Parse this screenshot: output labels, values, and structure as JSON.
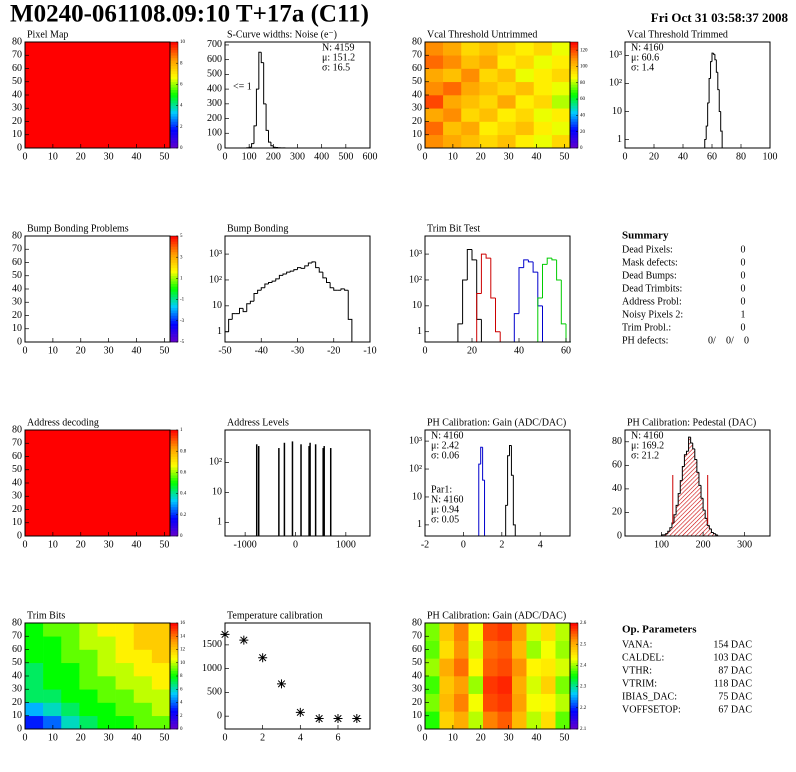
{
  "header": {
    "title": "M0240-061108.09:10 T+17a (C11)",
    "date": "Fri Oct 31 03:58:37 2008"
  },
  "palette": [
    "#6600cc",
    "#0000ff",
    "#00ccff",
    "#00ff00",
    "#ffff00",
    "#ff9900",
    "#ff0000"
  ],
  "chart_data": [
    {
      "type": "heatmap",
      "title": "Pixel Map",
      "values": [
        [
          10
        ]
      ],
      "xlim": [
        0,
        52
      ],
      "ylim": [
        0,
        80
      ],
      "xticks": [
        0,
        10,
        20,
        30,
        40,
        50
      ],
      "yticks": [
        0,
        10,
        20,
        30,
        40,
        50,
        60,
        70,
        80
      ],
      "zlim": [
        0,
        10
      ],
      "zticks": [
        0,
        2,
        4,
        6,
        8,
        10
      ]
    },
    {
      "type": "histogram",
      "title": "S-Curve widths: Noise (e⁻)",
      "color": "#000000",
      "bins": [
        90,
        100,
        110,
        120,
        130,
        140,
        150,
        160,
        170,
        180,
        190,
        200,
        210,
        220,
        230,
        240,
        250,
        260,
        270
      ],
      "values": [
        2,
        5,
        30,
        150,
        400,
        650,
        580,
        300,
        120,
        40,
        15,
        5,
        3,
        2,
        1,
        1,
        0,
        0
      ],
      "xlim": [
        0,
        600
      ],
      "ylim": [
        0,
        720
      ],
      "xticks": [
        0,
        100,
        200,
        300,
        400,
        500,
        600
      ],
      "yticks": [
        0,
        100,
        200,
        300,
        400,
        500,
        600,
        700
      ],
      "stats": [
        "N: 4159",
        "μ: 151.2",
        "σ: 16.5"
      ],
      "stats_corner": "right",
      "annotation": "<= 1"
    },
    {
      "type": "heatmap",
      "title": "Vcal Threshold Untrimmed",
      "values": [
        [
          110,
          105,
          100,
          95,
          100,
          90,
          85,
          95
        ],
        [
          115,
          100,
          105,
          90,
          95,
          100,
          90,
          85
        ],
        [
          105,
          110,
          95,
          100,
          90,
          95,
          85,
          90
        ],
        [
          120,
          105,
          100,
          95,
          105,
          90,
          95,
          80
        ],
        [
          110,
          115,
          105,
          100,
          95,
          100,
          90,
          85
        ],
        [
          105,
          100,
          110,
          95,
          100,
          85,
          90,
          95
        ],
        [
          115,
          110,
          100,
          105,
          90,
          95,
          85,
          90
        ],
        [
          110,
          105,
          95,
          100,
          95,
          90,
          95,
          85
        ]
      ],
      "xlim": [
        0,
        52
      ],
      "ylim": [
        0,
        80
      ],
      "xticks": [
        0,
        10,
        20,
        30,
        40,
        50
      ],
      "yticks": [
        0,
        10,
        20,
        30,
        40,
        50,
        60,
        70,
        80
      ],
      "zlim": [
        0,
        130
      ],
      "zticks": [
        0,
        20,
        40,
        60,
        80,
        100,
        120
      ]
    },
    {
      "type": "histogram",
      "title": "Vcal Threshold Trimmed",
      "color": "#000000",
      "log_y": true,
      "bins": [
        55,
        56,
        57,
        58,
        59,
        60,
        61,
        62,
        63,
        64,
        65,
        66,
        67
      ],
      "values": [
        1,
        3,
        20,
        150,
        600,
        1200,
        1100,
        700,
        250,
        60,
        10,
        2
      ],
      "xlim": [
        0,
        100
      ],
      "ylim": [
        0.5,
        3000
      ],
      "xticks": [
        0,
        20,
        40,
        60,
        80,
        100
      ],
      "yticks": [
        1,
        10,
        {
          "value": 100,
          "label": "10²"
        },
        {
          "value": 1000,
          "label": "10³"
        }
      ],
      "stats": [
        "N: 4160",
        "μ: 60.6",
        "σ:  1.4"
      ],
      "stats_corner": "left"
    },
    {
      "type": "heatmap",
      "title": "Bump Bonding Problems",
      "values": [],
      "xlim": [
        0,
        52
      ],
      "ylim": [
        0,
        80
      ],
      "xticks": [
        0,
        10,
        20,
        30,
        40,
        50
      ],
      "yticks": [
        0,
        10,
        20,
        30,
        40,
        50,
        60,
        70,
        80
      ],
      "zlim": [
        -5,
        5
      ],
      "zticks": [
        -5,
        -3,
        -1,
        1,
        3,
        5
      ]
    },
    {
      "type": "histogram",
      "title": "Bump Bonding",
      "color": "#000000",
      "log_y": true,
      "bins": [
        -50,
        -49,
        -48,
        -47,
        -46,
        -45,
        -44,
        -43,
        -42,
        -41,
        -40,
        -39,
        -38,
        -37,
        -36,
        -35,
        -34,
        -33,
        -32,
        -31,
        -30,
        -29,
        -28,
        -27,
        -26,
        -25,
        -24,
        -23,
        -22,
        -21,
        -20,
        -19,
        -18,
        -17,
        -16,
        -15
      ],
      "values": [
        1,
        3,
        5,
        5,
        8,
        6,
        12,
        15,
        30,
        40,
        50,
        70,
        80,
        90,
        110,
        150,
        170,
        200,
        220,
        250,
        300,
        280,
        350,
        450,
        500,
        300,
        200,
        120,
        80,
        50,
        40,
        40,
        45,
        40,
        3
      ],
      "xlim": [
        -50,
        -10
      ],
      "ylim": [
        0.4,
        5000
      ],
      "xticks": [
        -50,
        -40,
        -30,
        -20,
        -10
      ],
      "yticks": [
        1,
        10,
        {
          "value": 100,
          "label": "10²"
        },
        {
          "value": 1000,
          "label": "10³"
        }
      ]
    },
    {
      "type": "histogram",
      "title": "Trim Bit Test",
      "log_y": true,
      "bins": [
        10,
        12,
        14,
        16,
        18,
        20,
        22,
        24,
        26,
        28,
        30,
        32,
        34,
        36,
        38,
        40,
        42,
        44,
        46,
        48,
        50,
        52,
        54,
        56,
        58,
        60,
        62
      ],
      "series": [
        {
          "color": "#000000",
          "values": [
            0,
            0,
            2,
            100,
            1500,
            600,
            3,
            0,
            0,
            0,
            0,
            0,
            0,
            0,
            0,
            0,
            0,
            0,
            0,
            0,
            0,
            0,
            0,
            0,
            0,
            0
          ]
        },
        {
          "color": "#cc0000",
          "values": [
            0,
            0,
            0,
            0,
            0,
            0,
            30,
            1000,
            700,
            20,
            1,
            0,
            0,
            0,
            0,
            0,
            0,
            0,
            0,
            0,
            0,
            0,
            0,
            0,
            0,
            0
          ]
        },
        {
          "color": "#0000cc",
          "values": [
            0,
            0,
            0,
            0,
            0,
            0,
            0,
            0,
            0,
            0,
            0,
            0,
            0,
            0,
            5,
            300,
            600,
            500,
            200,
            10,
            0,
            0,
            0,
            0,
            0,
            0
          ]
        },
        {
          "color": "#00cc00",
          "values": [
            0,
            0,
            0,
            0,
            0,
            0,
            0,
            0,
            0,
            0,
            0,
            0,
            0,
            0,
            0,
            0,
            0,
            0,
            0,
            20,
            400,
            700,
            600,
            100,
            2,
            0
          ]
        }
      ],
      "xlim": [
        0,
        61.7
      ],
      "ylim": [
        0.4,
        5000
      ],
      "xticks": [
        0,
        20,
        40,
        60
      ],
      "yticks": [
        1,
        10,
        {
          "value": 100,
          "label": "10²"
        },
        {
          "value": 1000,
          "label": "10³"
        }
      ]
    },
    {
      "type": "heatmap",
      "title": "Address decoding",
      "values": [
        [
          1
        ]
      ],
      "xlim": [
        0,
        52
      ],
      "ylim": [
        0,
        80
      ],
      "xticks": [
        0,
        10,
        20,
        30,
        40,
        50
      ],
      "yticks": [
        0,
        10,
        20,
        30,
        40,
        50,
        60,
        70,
        80
      ],
      "zlim": [
        0,
        1
      ],
      "zticks": [
        0,
        0.2,
        0.4,
        0.6,
        0.8,
        1
      ]
    },
    {
      "type": "spikes",
      "title": "Address Levels",
      "color": "#000000",
      "log_y": true,
      "x": [
        -770,
        -730,
        -330,
        -220,
        -60,
        110,
        270,
        290,
        400,
        550,
        570,
        700
      ],
      "values": [
        400,
        350,
        300,
        450,
        500,
        400,
        350,
        450,
        400,
        300,
        350,
        300
      ],
      "xlim": [
        -1400,
        1480
      ],
      "ylim": [
        0.35,
        1200
      ],
      "xticks": [
        -1000,
        0,
        1000
      ],
      "yticks": [
        1,
        10,
        {
          "value": 100,
          "label": "10²"
        }
      ]
    },
    {
      "type": "histogram",
      "title": "PH Calibration: Gain (ADC/DAC)",
      "log_y": true,
      "bins": [
        0.7,
        0.8,
        0.9,
        1.0,
        1.1,
        1.2,
        1.3,
        1.4,
        1.5,
        1.6,
        1.7,
        1.8,
        1.9,
        2.0,
        2.1,
        2.2,
        2.3,
        2.4,
        2.5,
        2.6,
        2.7
      ],
      "series": [
        {
          "color": "#000000",
          "values": [
            0,
            0,
            0,
            0,
            0,
            0,
            0,
            0,
            0,
            0,
            0,
            0,
            0,
            0,
            0,
            5,
            300,
            700,
            60,
            1
          ],
          "stats": [
            "N: 4160",
            "μ: 2.42",
            "σ: 0.06"
          ]
        },
        {
          "color": "#0000cc",
          "values": [
            0,
            150,
            600,
            40,
            0,
            0,
            0,
            0,
            0,
            0,
            0,
            0,
            0,
            0,
            0,
            0,
            0,
            0,
            0,
            0
          ],
          "stats": [
            "Par1:",
            "N: 4160",
            "μ: 0.94",
            "σ: 0.05"
          ]
        }
      ],
      "xlim": [
        -2,
        5.55
      ],
      "ylim": [
        0.4,
        2500
      ],
      "xticks": [
        -2,
        0,
        2,
        4
      ],
      "yticks": [
        1,
        10,
        {
          "value": 100,
          "label": "10²"
        },
        {
          "value": 1000,
          "label": "10³"
        }
      ],
      "stats_corner": "left"
    },
    {
      "type": "histogram",
      "title": "PH Calibration: Pedestal (DAC)",
      "color": "#000000",
      "fill": "#cc0000",
      "bins": [
        100,
        105,
        110,
        115,
        120,
        125,
        130,
        135,
        140,
        145,
        150,
        155,
        160,
        165,
        170,
        175,
        180,
        185,
        190,
        195,
        200,
        205,
        210,
        215,
        220,
        225,
        230,
        235,
        240
      ],
      "values": [
        1,
        1,
        2,
        4,
        7,
        11,
        18,
        26,
        36,
        47,
        59,
        69,
        72,
        84,
        79,
        74,
        65,
        54,
        43,
        32,
        22,
        15,
        9,
        6,
        3,
        2,
        1,
        0
      ],
      "markers": [
        127,
        211
      ],
      "marker_color": "#cc0000",
      "xlim": [
        12,
        361
      ],
      "ylim": [
        0,
        90
      ],
      "xticks": [
        100,
        200,
        300
      ],
      "yticks": [
        0,
        20,
        40,
        60,
        80
      ],
      "stats": [
        {
          "text": "N: 4160",
          "color": "#000000"
        },
        {
          "text": "μ: 169.2",
          "color": "#cc0000"
        },
        {
          "text": "σ: 21.2",
          "color": "#cc0000"
        }
      ],
      "stats_corner": "left"
    },
    {
      "type": "heatmap",
      "title": "Trim Bits",
      "values": [
        [
          3,
          4,
          6,
          7,
          8,
          8,
          9,
          9
        ],
        [
          5,
          6,
          7,
          8,
          8,
          9,
          9,
          10
        ],
        [
          7,
          7,
          8,
          8,
          9,
          9,
          10,
          10
        ],
        [
          7,
          8,
          8,
          9,
          9,
          10,
          10,
          11
        ],
        [
          7,
          8,
          8,
          9,
          10,
          10,
          11,
          11
        ],
        [
          8,
          8,
          9,
          9,
          10,
          11,
          11,
          12
        ],
        [
          8,
          8,
          9,
          10,
          10,
          11,
          12,
          12
        ],
        [
          8,
          9,
          9,
          10,
          11,
          11,
          12,
          12
        ]
      ],
      "xlim": [
        0,
        52
      ],
      "ylim": [
        0,
        80
      ],
      "xticks": [
        0,
        10,
        20,
        30,
        40,
        50
      ],
      "yticks": [
        0,
        10,
        20,
        30,
        40,
        50,
        60,
        70,
        80
      ],
      "zlim": [
        0,
        16
      ],
      "zticks": [
        0,
        2,
        4,
        6,
        8,
        10,
        12,
        14,
        16
      ]
    },
    {
      "type": "scatter",
      "title": "Temperature calibration",
      "color": "#000000",
      "x": [
        0,
        1,
        2,
        3,
        4,
        5,
        6,
        7
      ],
      "values": [
        1720,
        1600,
        1230,
        680,
        80,
        -50,
        -50,
        -50
      ],
      "xlim": [
        0,
        7.7
      ],
      "ylim": [
        -270,
        1960
      ],
      "xticks": [
        0,
        2,
        4,
        6
      ],
      "yticks": [
        0,
        500,
        1000,
        1500
      ]
    },
    {
      "type": "heatmap",
      "title": "PH Calibration: Gain (ADC/DAC)",
      "values": [
        [
          2.36,
          2.47,
          2.5,
          2.41,
          2.53,
          2.55,
          2.49,
          2.41,
          2.46,
          2.38
        ],
        [
          2.39,
          2.49,
          2.53,
          2.43,
          2.56,
          2.57,
          2.51,
          2.43,
          2.44,
          2.41
        ],
        [
          2.37,
          2.48,
          2.51,
          2.4,
          2.57,
          2.58,
          2.5,
          2.42,
          2.47,
          2.39
        ],
        [
          2.4,
          2.5,
          2.54,
          2.44,
          2.55,
          2.56,
          2.52,
          2.44,
          2.45,
          2.42
        ],
        [
          2.38,
          2.46,
          2.52,
          2.42,
          2.54,
          2.55,
          2.49,
          2.4,
          2.43,
          2.4
        ],
        [
          2.39,
          2.48,
          2.53,
          2.43,
          2.56,
          2.57,
          2.51,
          2.42,
          2.46,
          2.41
        ]
      ],
      "xlim": [
        0,
        52
      ],
      "ylim": [
        0,
        80
      ],
      "xticks": [
        0,
        10,
        20,
        30,
        40,
        50
      ],
      "yticks": [
        0,
        10,
        20,
        30,
        40,
        50,
        60,
        70,
        80
      ],
      "zlim": [
        2.1,
        2.6
      ],
      "zticks": [
        2.1,
        2.2,
        2.3,
        2.4,
        2.5,
        2.6
      ]
    }
  ],
  "summary": {
    "title": "Summary",
    "rows": [
      {
        "label": "Dead Pixels:",
        "value": "0"
      },
      {
        "label": "Mask defects:",
        "value": "0"
      },
      {
        "label": "Dead Bumps:",
        "value": "0"
      },
      {
        "label": "Dead Trimbits:",
        "value": "0"
      },
      {
        "label": "Address Probl:",
        "value": "0"
      },
      {
        "label": "Noisy Pixels 2:",
        "value": "1"
      },
      {
        "label": "Trim Probl.:",
        "value": "0"
      },
      {
        "label": "PH defects:",
        "values": [
          "0/",
          "0/",
          "0"
        ],
        "colors": [
          "#000000",
          "#cc0000",
          "#0000cc"
        ]
      }
    ]
  },
  "op_parameters": {
    "title": "Op. Parameters",
    "rows": [
      {
        "label": "VANA:",
        "value": "154 DAC"
      },
      {
        "label": "CALDEL:",
        "value": "103 DAC"
      },
      {
        "label": "VTHR:",
        "value": "87 DAC"
      },
      {
        "label": "VTRIM:",
        "value": "118 DAC"
      },
      {
        "label": "IBIAS_DAC:",
        "value": "75 DAC"
      },
      {
        "label": "VOFFSETOP:",
        "value": "67 DAC"
      }
    ]
  }
}
